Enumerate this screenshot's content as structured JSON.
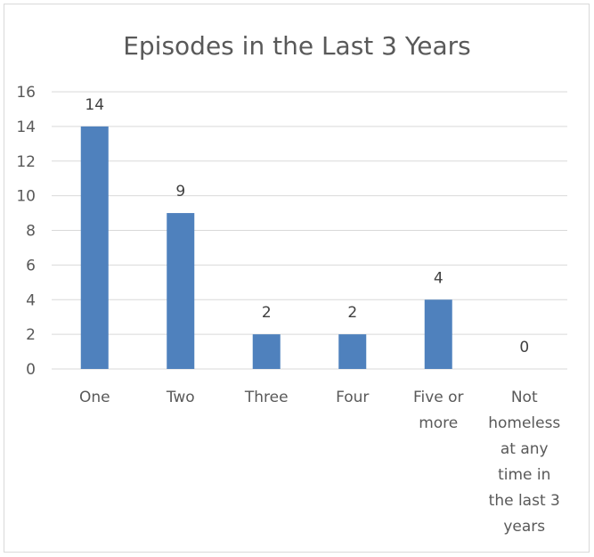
{
  "chart_data": {
    "type": "bar",
    "title": "Episodes in the Last 3 Years",
    "categories": [
      [
        "One"
      ],
      [
        "Two"
      ],
      [
        "Three"
      ],
      [
        "Four"
      ],
      [
        "Five or",
        "more"
      ],
      [
        "Not",
        "homeless",
        "at any",
        "time in",
        "the last 3",
        "years"
      ]
    ],
    "values": [
      14,
      9,
      2,
      2,
      4,
      0
    ],
    "ylim": [
      0,
      16
    ],
    "yticks": [
      "0",
      "2",
      "4",
      "6",
      "8",
      "10",
      "12",
      "14",
      "16"
    ],
    "grid": true,
    "bar_color": "#4f81bd"
  }
}
